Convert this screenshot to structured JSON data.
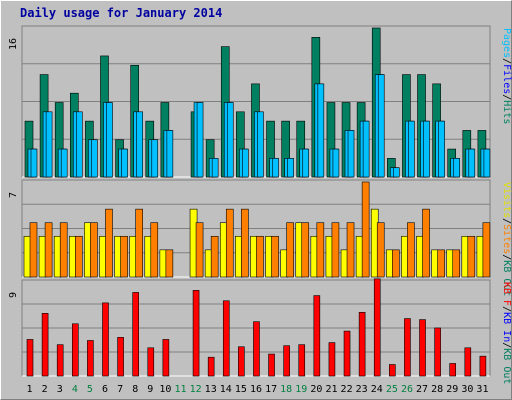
{
  "chart_data": {
    "type": "bar",
    "title": "Daily usage for January 2014",
    "x": [
      "1",
      "2",
      "3",
      "4",
      "5",
      "6",
      "7",
      "8",
      "9",
      "10",
      "11",
      "12",
      "13",
      "14",
      "15",
      "16",
      "17",
      "18",
      "19",
      "20",
      "21",
      "22",
      "23",
      "24",
      "25",
      "26",
      "27",
      "28",
      "29",
      "30",
      "31"
    ],
    "weekend_days": [
      "4",
      "5",
      "11",
      "12",
      "18",
      "19",
      "25",
      "26"
    ],
    "panels": [
      {
        "name": "top",
        "ymax_label": "16",
        "ymax": 16,
        "legend": [
          "Pages",
          "Files",
          "Hits"
        ],
        "series": [
          {
            "name": "Hits",
            "color": "#008060",
            "values": [
              6,
              11,
              8,
              9,
              6,
              13,
              4,
              12,
              6,
              8,
              0,
              7,
              4,
              14,
              7,
              10,
              6,
              6,
              6,
              15,
              8,
              8,
              8,
              16,
              2,
              11,
              11,
              10,
              3,
              5,
              5
            ]
          },
          {
            "name": "Files",
            "color": "#00c0ff",
            "values": [
              3,
              7,
              3,
              7,
              4,
              8,
              3,
              7,
              4,
              5,
              0,
              8,
              2,
              8,
              3,
              7,
              2,
              2,
              3,
              10,
              3,
              5,
              6,
              11,
              1,
              6,
              6,
              6,
              2,
              3,
              3
            ]
          },
          {
            "name": "Pages",
            "color": "#00c0ff",
            "values": [
              3,
              7,
              3,
              7,
              4,
              8,
              3,
              7,
              4,
              5,
              0,
              8,
              2,
              8,
              3,
              7,
              2,
              2,
              3,
              10,
              3,
              5,
              6,
              11,
              1,
              6,
              6,
              6,
              2,
              3,
              3
            ]
          }
        ]
      },
      {
        "name": "middle",
        "ymax_label": "7",
        "ymax": 7,
        "legend": [
          "Visits",
          "Sites",
          "KB Out"
        ],
        "series": [
          {
            "name": "Visits",
            "color": "#ffff00",
            "values": [
              3,
              3,
              3,
              3,
              4,
              3,
              3,
              3,
              3,
              2,
              0,
              5,
              2,
              4,
              3,
              3,
              3,
              2,
              4,
              3,
              3,
              2,
              3,
              5,
              2,
              3,
              3,
              2,
              2,
              3,
              3
            ]
          },
          {
            "name": "Sites",
            "color": "#ff8000",
            "values": [
              4,
              4,
              4,
              3,
              4,
              5,
              3,
              5,
              4,
              2,
              0,
              4,
              3,
              5,
              5,
              3,
              3,
              4,
              4,
              4,
              4,
              4,
              7,
              4,
              2,
              4,
              5,
              2,
              2,
              3,
              4
            ]
          }
        ]
      },
      {
        "name": "bottom",
        "ymax_label": "9",
        "ymax": 9,
        "legend": [
          "KB F",
          "KB In",
          "KB Out"
        ],
        "series": [
          {
            "name": "KB F",
            "color": "#ff0000",
            "values": [
              3.5,
              6,
              3,
              5,
              3.4,
              7,
              3.7,
              8,
              2.7,
              3.5,
              0,
              8.2,
              1.8,
              7.2,
              2.8,
              5.2,
              2.1,
              2.9,
              3,
              7.7,
              3.2,
              4.3,
              6.1,
              9.3,
              1.1,
              5.5,
              5.4,
              4.6,
              1.2,
              2.7,
              1.9
            ]
          }
        ]
      }
    ]
  }
}
